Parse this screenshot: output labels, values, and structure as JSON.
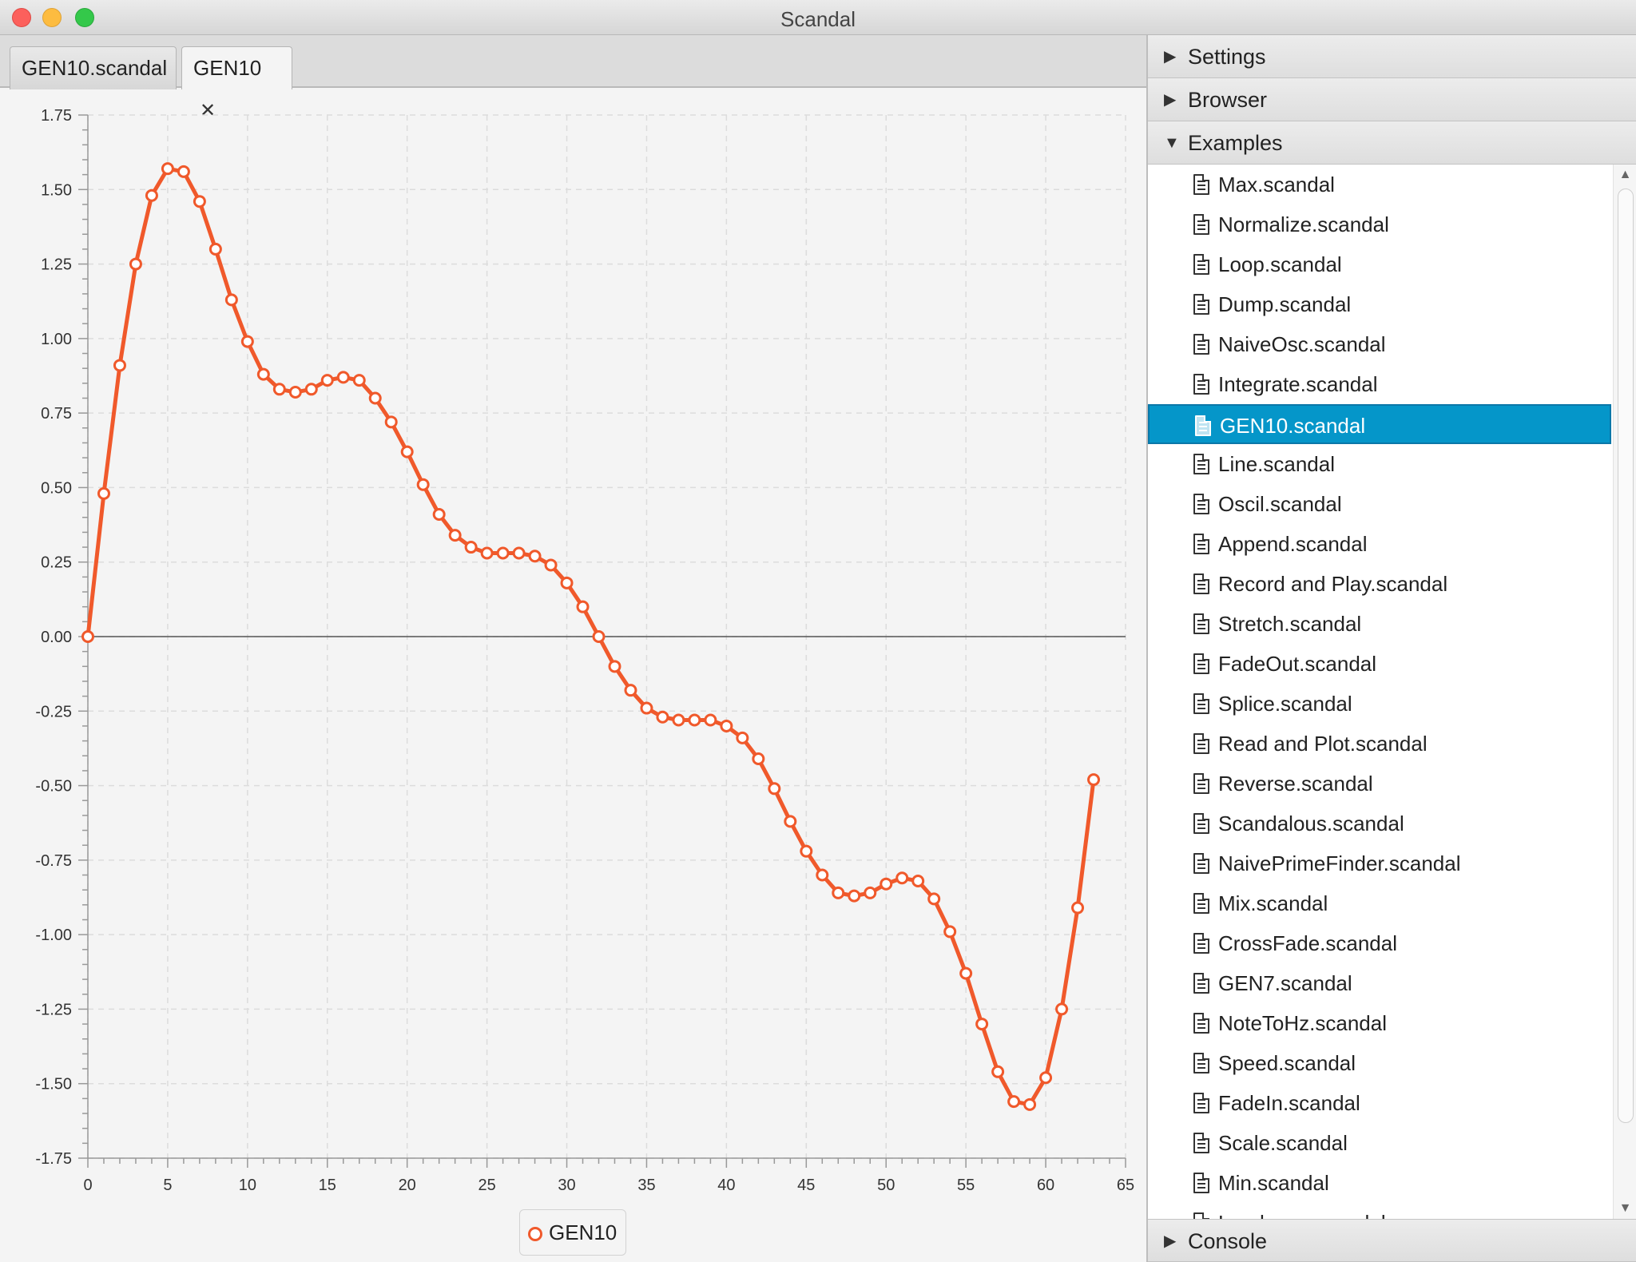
{
  "window": {
    "title": "Scandal"
  },
  "tabs": [
    {
      "label": "GEN10.scandal"
    },
    {
      "label": "GEN10",
      "close": "✕"
    }
  ],
  "sidebar": {
    "settings": "Settings",
    "browser": "Browser",
    "examples": "Examples",
    "console": "Console",
    "examples_list": [
      "Max.scandal",
      "Normalize.scandal",
      "Loop.scandal",
      "Dump.scandal",
      "NaiveOsc.scandal",
      "Integrate.scandal",
      "GEN10.scandal",
      "Line.scandal",
      "Oscil.scandal",
      "Append.scandal",
      "Record and Play.scandal",
      "Stretch.scandal",
      "FadeOut.scandal",
      "Splice.scandal",
      "Read and Plot.scandal",
      "Reverse.scandal",
      "Scandalous.scandal",
      "NaivePrimeFinder.scandal",
      "Mix.scandal",
      "CrossFade.scandal",
      "GEN7.scandal",
      "NoteToHz.scandal",
      "Speed.scandal",
      "FadeIn.scandal",
      "Scale.scandal",
      "Min.scandal",
      "Loudness.scandal"
    ],
    "selected_index": 6
  },
  "chart_data": {
    "type": "line",
    "title": "",
    "xlabel": "",
    "ylabel": "",
    "xlim": [
      0,
      65
    ],
    "ylim": [
      -1.75,
      1.75
    ],
    "x_ticks": [
      "0",
      "5",
      "10",
      "15",
      "20",
      "25",
      "30",
      "35",
      "40",
      "45",
      "50",
      "55",
      "60",
      "65"
    ],
    "y_ticks": [
      "1.75",
      "1.50",
      "1.25",
      "1.00",
      "0.75",
      "0.50",
      "0.25",
      "0.00",
      "-0.25",
      "-0.50",
      "-0.75",
      "-1.00",
      "-1.25",
      "-1.50",
      "-1.75"
    ],
    "grid": true,
    "legend_position": "bottom",
    "series": [
      {
        "name": "GEN10",
        "color": "#f0592b",
        "x": [
          0,
          1,
          2,
          3,
          4,
          5,
          6,
          7,
          8,
          9,
          10,
          11,
          12,
          13,
          14,
          15,
          16,
          17,
          18,
          19,
          20,
          21,
          22,
          23,
          24,
          25,
          26,
          27,
          28,
          29,
          30,
          31,
          32,
          33,
          34,
          35,
          36,
          37,
          38,
          39,
          40,
          41,
          42,
          43,
          44,
          45,
          46,
          47,
          48,
          49,
          50,
          51,
          52,
          53,
          54,
          55,
          56,
          57,
          58,
          59,
          60,
          61,
          62,
          63
        ],
        "values": [
          0.0,
          0.48,
          0.91,
          1.25,
          1.48,
          1.57,
          1.56,
          1.46,
          1.3,
          1.13,
          0.99,
          0.88,
          0.83,
          0.82,
          0.83,
          0.86,
          0.87,
          0.86,
          0.8,
          0.72,
          0.62,
          0.51,
          0.41,
          0.34,
          0.3,
          0.28,
          0.28,
          0.28,
          0.27,
          0.24,
          0.18,
          0.1,
          0.0,
          -0.1,
          -0.18,
          -0.24,
          -0.27,
          -0.28,
          -0.28,
          -0.28,
          -0.3,
          -0.34,
          -0.41,
          -0.51,
          -0.62,
          -0.72,
          -0.8,
          -0.86,
          -0.87,
          -0.86,
          -0.83,
          -0.81,
          -0.82,
          -0.88,
          -0.99,
          -1.13,
          -1.3,
          -1.46,
          -1.56,
          -1.57,
          -1.48,
          -1.25,
          -0.91,
          -0.48
        ]
      }
    ]
  }
}
